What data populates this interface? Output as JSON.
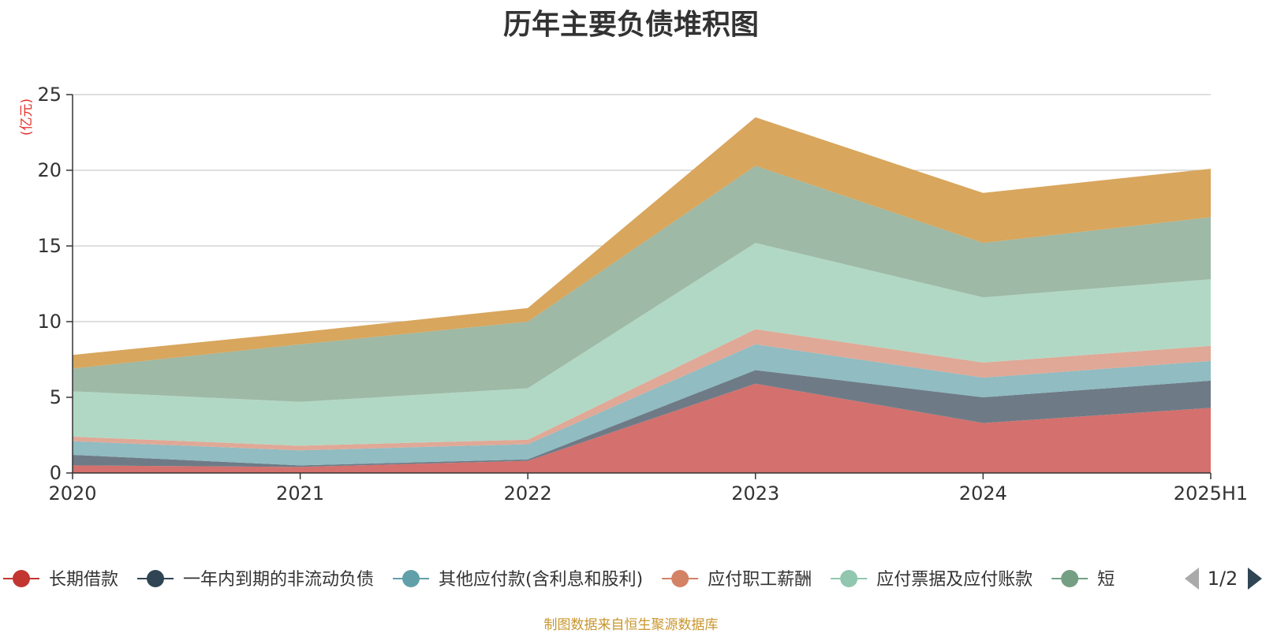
{
  "chart_data": {
    "type": "area",
    "title": "历年主要负债堆积图",
    "ylabel": "(亿元)",
    "ylim": [
      0,
      25
    ],
    "yticks": [
      "0",
      "5",
      "10",
      "15",
      "20",
      "25"
    ],
    "yticks_values": [
      0,
      5,
      10,
      15,
      20,
      25
    ],
    "categories": [
      "2020",
      "2021",
      "2022",
      "2023",
      "2024",
      "2025H1"
    ],
    "grid": true,
    "stacked": true,
    "legend_position": "bottom",
    "series": [
      {
        "name": "长期借款",
        "color": "#c23531",
        "area_color": "#d4706d",
        "values": [
          0.5,
          0.4,
          0.8,
          5.9,
          3.3,
          4.3
        ]
      },
      {
        "name": "一年内到期的非流动负债",
        "color": "#2f4554",
        "area_color": "#6e7b86",
        "values": [
          0.7,
          0.1,
          0.1,
          0.9,
          1.7,
          1.8
        ]
      },
      {
        "name": "其他应付款(含利息和股利)",
        "color": "#61a0a8",
        "area_color": "#90bcc2",
        "values": [
          0.9,
          1.0,
          1.0,
          1.7,
          1.3,
          1.3
        ]
      },
      {
        "name": "应付职工薪酬",
        "color": "#d48265",
        "area_color": "#e0a896",
        "values": [
          0.3,
          0.3,
          0.3,
          1.0,
          1.0,
          1.0
        ]
      },
      {
        "name": "应付票据及应付账款",
        "color": "#91c7ae",
        "area_color": "#b1d8c5",
        "values": [
          3.0,
          2.9,
          3.4,
          5.7,
          4.3,
          4.4
        ]
      },
      {
        "name": "短",
        "color": "#749f83",
        "area_color": "#9eb9a5",
        "values": [
          1.5,
          3.8,
          4.4,
          5.1,
          3.6,
          4.1
        ]
      },
      {
        "name": "",
        "color": "#ca8622",
        "area_color": "#d8a65d",
        "values": [
          0.9,
          0.8,
          0.9,
          3.2,
          3.3,
          3.2
        ]
      }
    ]
  },
  "legend": {
    "page_indicator": "1/2",
    "prev_icon": "triangle-left-icon",
    "next_icon": "triangle-right-icon"
  },
  "footer": {
    "source": "制图数据来自恒生聚源数据库"
  }
}
